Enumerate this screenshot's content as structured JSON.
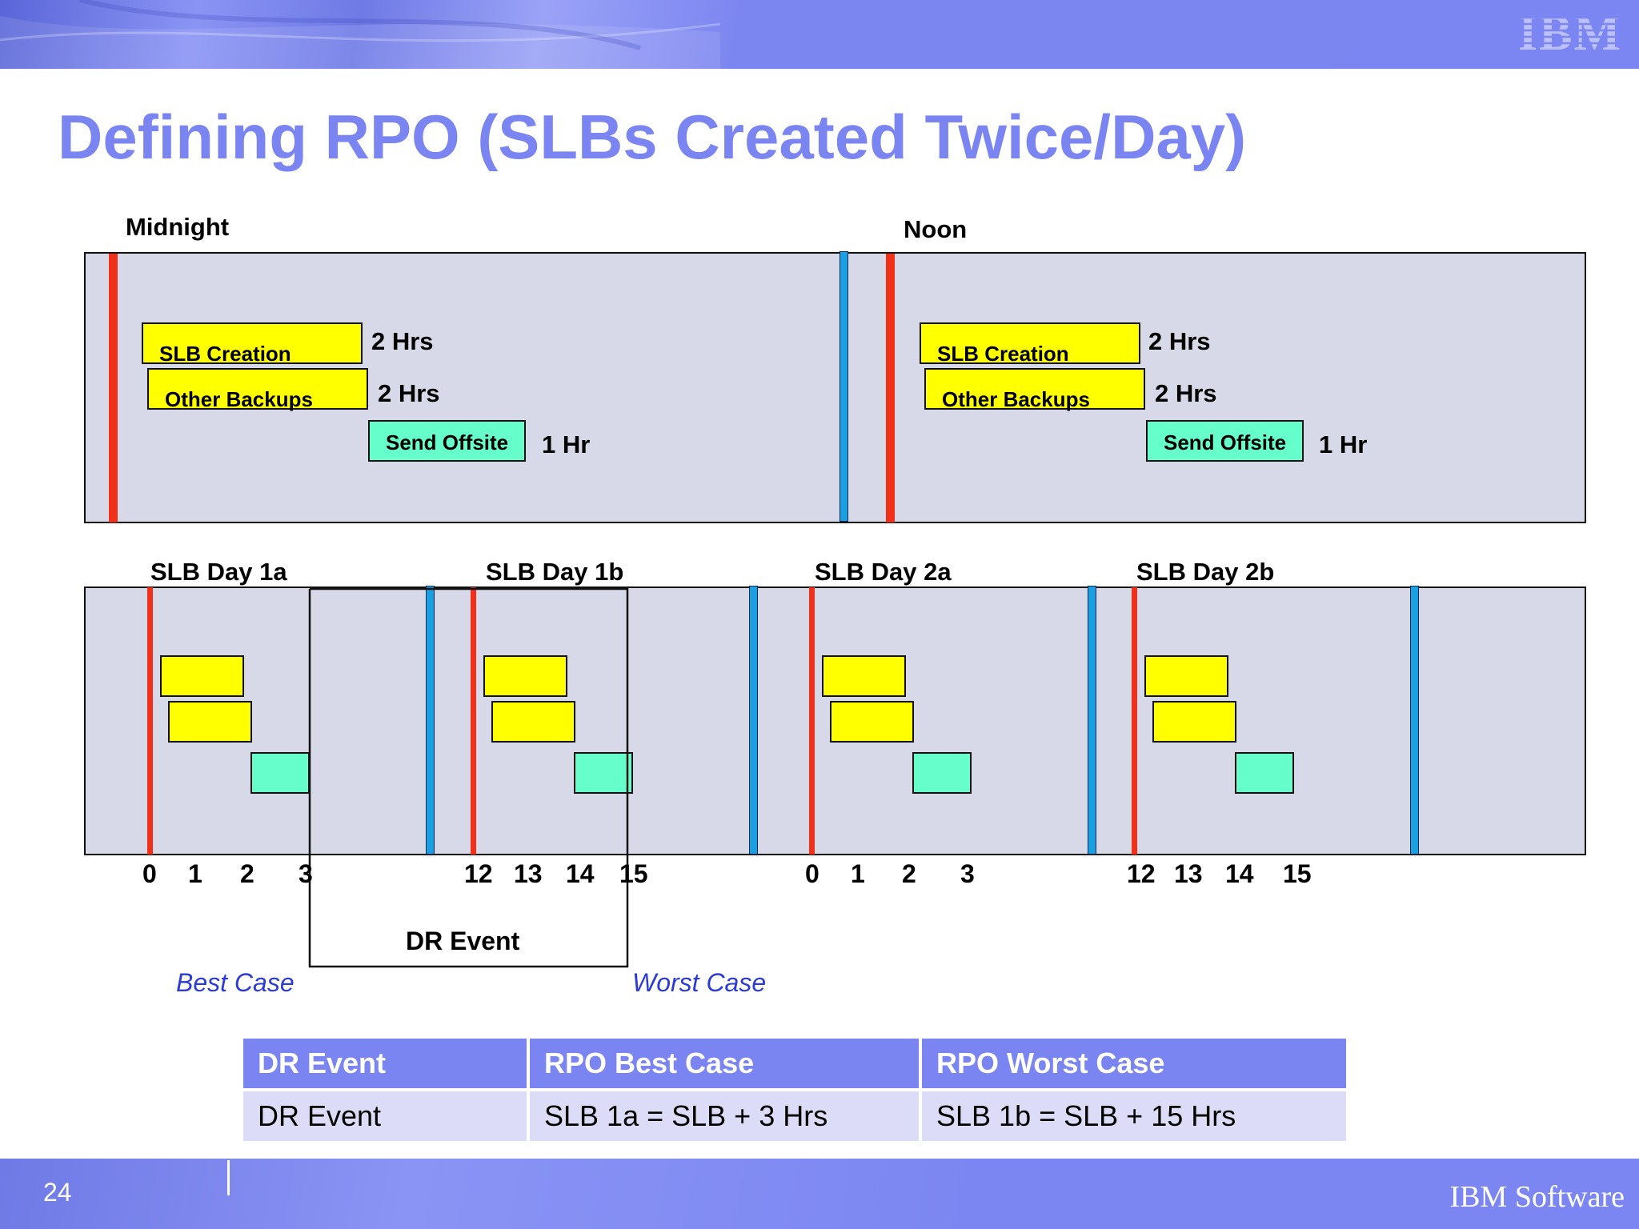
{
  "header": {
    "logo_text": "IBM"
  },
  "title": "Defining RPO (SLBs Created Twice/Day)",
  "top_diagram": {
    "midnight_label": "Midnight",
    "noon_label": "Noon",
    "left": {
      "slb_creation": "SLB Creation",
      "slb_creation_dur": "2 Hrs",
      "other_backups": "Other Backups",
      "other_backups_dur": "2 Hrs",
      "send_offsite": "Send Offsite",
      "send_offsite_dur": "1 Hr"
    },
    "right": {
      "slb_creation": "SLB Creation",
      "slb_creation_dur": "2 Hrs",
      "other_backups": "Other Backups",
      "other_backups_dur": "2 Hrs",
      "send_offsite": "Send Offsite",
      "send_offsite_dur": "1 Hr"
    }
  },
  "timeline": {
    "day_labels": [
      "SLB Day 1a",
      "SLB Day 1b",
      "SLB Day 2a",
      "SLB Day 2b"
    ],
    "ticks_1a": [
      "0",
      "1",
      "2",
      "3"
    ],
    "ticks_1b": [
      "12",
      "13",
      "14",
      "15"
    ],
    "ticks_2a": [
      "0",
      "1",
      "2",
      "3"
    ],
    "ticks_2b": [
      "12",
      "13",
      "14",
      "15"
    ],
    "dr_event_label": "DR Event",
    "best_case": "Best Case",
    "worst_case": "Worst Case"
  },
  "table": {
    "headers": [
      "DR Event",
      "RPO Best Case",
      "RPO Worst Case"
    ],
    "row": [
      "DR Event",
      "SLB 1a = SLB + 3 Hrs",
      "SLB 1b = SLB + 15 Hrs"
    ]
  },
  "footer": {
    "page_number": "24",
    "brand": "IBM Software"
  },
  "colors": {
    "accent": "#7b85f2",
    "slb_box": "#ffff00",
    "offsite_box": "#66ffcc",
    "red_line": "#f03018",
    "blue_line": "#1aa0e0",
    "panel": "#d8d9e8"
  }
}
